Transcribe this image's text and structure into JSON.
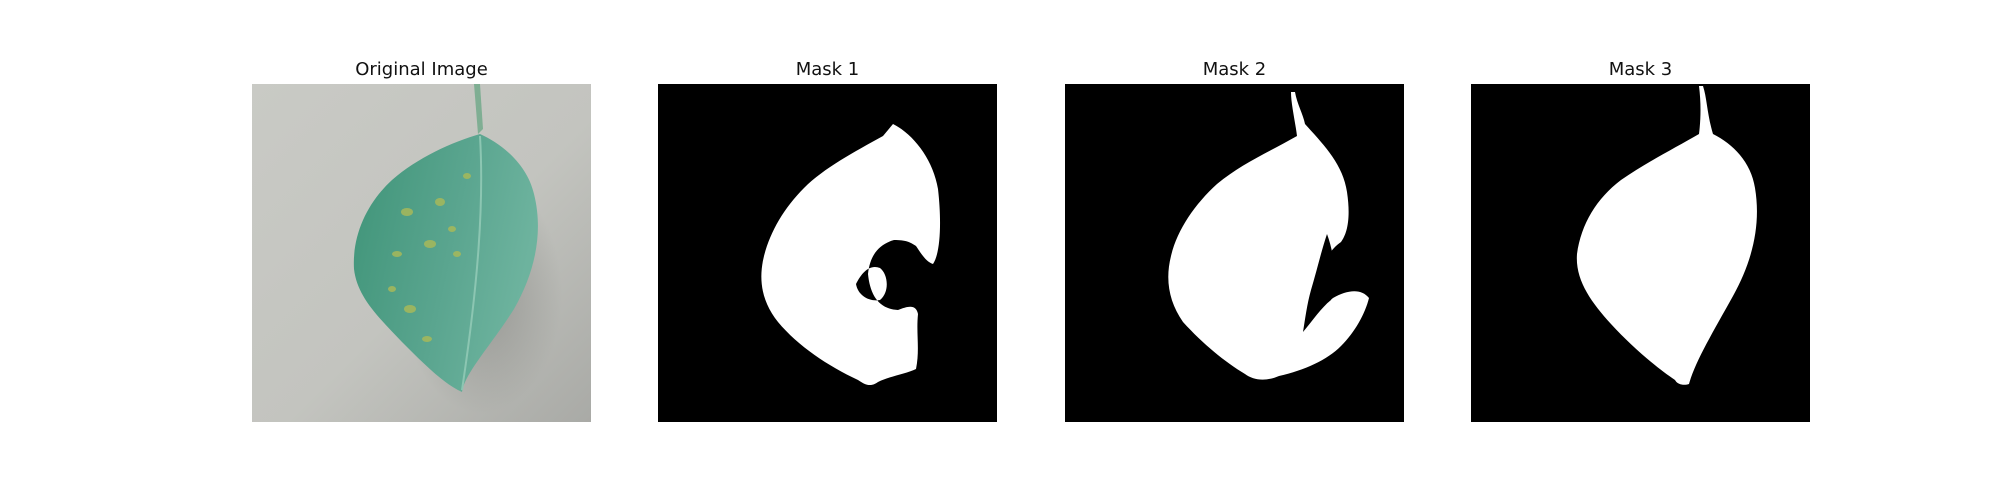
{
  "panels": [
    {
      "title": "Original Image",
      "image": "leaf-photo",
      "background": "#c7c8c3",
      "leaf_color": "#5aa58f"
    },
    {
      "title": "Mask 1",
      "image": "binary-mask",
      "background": "#000000",
      "foreground": "#ffffff"
    },
    {
      "title": "Mask 2",
      "image": "binary-mask",
      "background": "#000000",
      "foreground": "#ffffff"
    },
    {
      "title": "Mask 3",
      "image": "binary-mask",
      "background": "#000000",
      "foreground": "#ffffff"
    }
  ]
}
